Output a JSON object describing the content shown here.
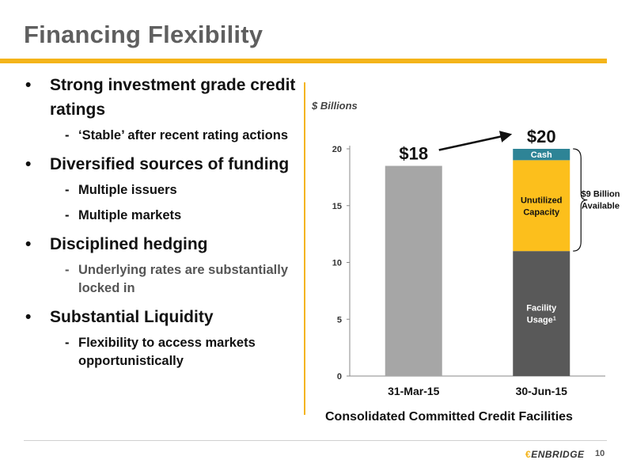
{
  "title": "Financing Flexibility",
  "bullets": [
    {
      "text": "Strong investment grade credit ratings",
      "subs": [
        {
          "text": "‘Stable’ after recent rating actions",
          "muted": false
        }
      ]
    },
    {
      "text": "Diversified sources of funding",
      "subs": [
        {
          "text": "Multiple issuers",
          "muted": false
        },
        {
          "text": "Multiple markets",
          "muted": false
        }
      ]
    },
    {
      "text": "Disciplined hedging",
      "subs": [
        {
          "text": "Underlying rates are substantially locked in",
          "muted": true
        }
      ]
    },
    {
      "text": "Substantial Liquidity",
      "subs": [
        {
          "text": "Flexibility to access markets opportunistically",
          "muted": false
        }
      ]
    }
  ],
  "chart_data": {
    "type": "bar",
    "stacked": true,
    "title": "Consolidated Committed Credit Facilities",
    "ylabel": "$ Billions",
    "ylim": [
      0,
      20
    ],
    "yticks": [
      0,
      5,
      10,
      15,
      20
    ],
    "categories": [
      "31-Mar-15",
      "30-Jun-15"
    ],
    "series": [
      {
        "name": "",
        "values": [
          18.5,
          0
        ],
        "color": "#a6a6a6"
      },
      {
        "name": "Facility Usage",
        "label": "Facility Usage",
        "superscript": "1",
        "values": [
          0,
          11.0
        ],
        "color": "#595959"
      },
      {
        "name": "Unutilized Capacity",
        "label": "Unutilized Capacity",
        "values": [
          0,
          8.0
        ],
        "color": "#fcbf1c"
      },
      {
        "name": "Cash",
        "label": "Cash",
        "values": [
          0,
          1.0
        ],
        "color": "#2e8496"
      }
    ],
    "totals_labels": [
      "$18",
      "$20"
    ],
    "annotation": "$9 Billion Available",
    "grid": false,
    "legend": "none"
  },
  "footer": {
    "logo": "ENBRIDGE",
    "page": "10"
  },
  "colors": {
    "accent": "#f4b41a",
    "title": "#5f5f5f"
  }
}
